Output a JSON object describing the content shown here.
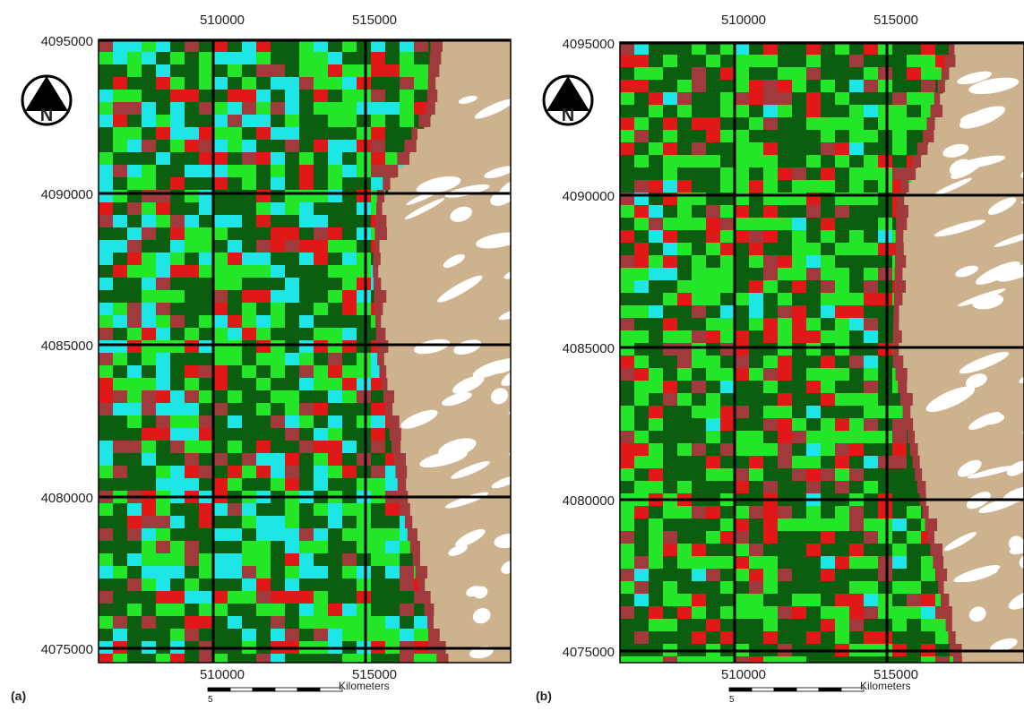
{
  "panels": [
    {
      "label": "(a)",
      "north": "N",
      "x_labels_top": [
        "510000",
        "515000"
      ],
      "x_labels_bottom": [
        "510000",
        "515000"
      ],
      "y_labels": [
        "4095000",
        "4090000",
        "4085000",
        "4080000",
        "4075000"
      ],
      "scale_bar": {
        "tick": "5",
        "unit": "Kilometers"
      }
    },
    {
      "label": "(b)",
      "north": "N",
      "x_labels_top": [
        "510000",
        "515000"
      ],
      "x_labels_bottom": [
        "510000",
        "515000"
      ],
      "y_labels": [
        "4095000",
        "4090000",
        "4085000",
        "4080000",
        "4075000"
      ],
      "scale_bar": {
        "tick": "5",
        "unit": "Kilometers"
      }
    }
  ]
}
